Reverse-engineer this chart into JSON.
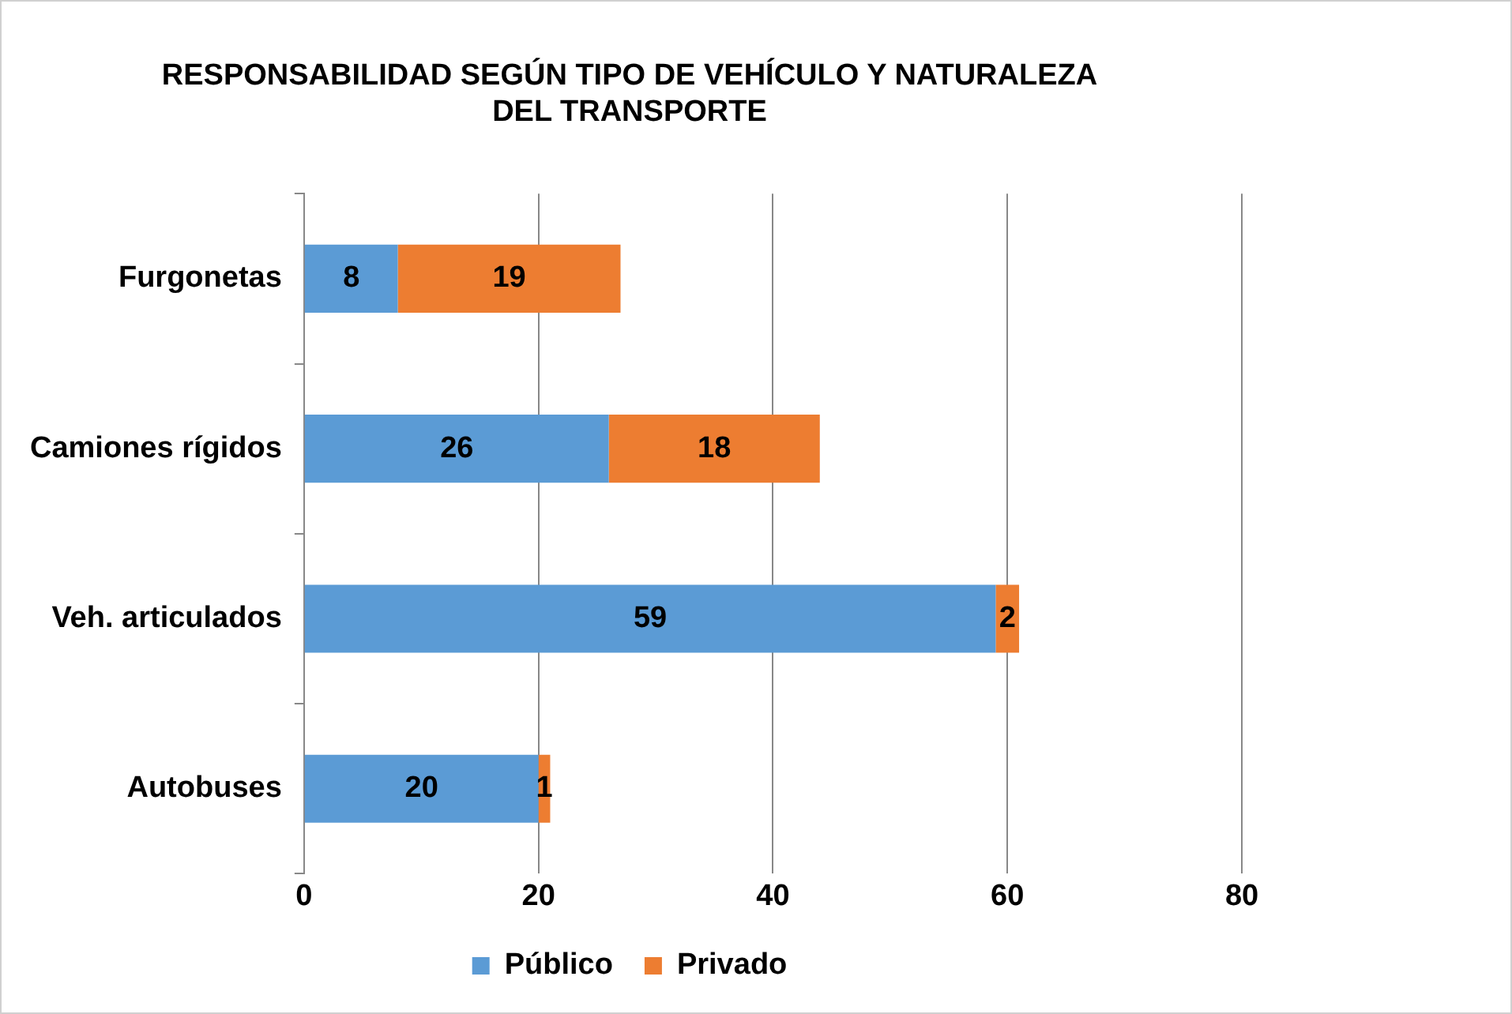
{
  "chart_data": {
    "type": "bar",
    "orientation": "horizontal",
    "stacked": true,
    "title": "RESPONSABILIDAD SEGÚN TIPO DE VEHÍCULO Y NATURALEZA\nDEL TRANSPORTE",
    "categories": [
      "Furgonetas",
      "Camiones rígidos",
      "Veh. articulados",
      "Autobuses"
    ],
    "series": [
      {
        "name": "Público",
        "color": "#5b9bd5",
        "values": [
          8,
          26,
          59,
          20
        ]
      },
      {
        "name": "Privado",
        "color": "#ed7d31",
        "values": [
          19,
          18,
          2,
          1
        ]
      }
    ],
    "xlim": [
      0,
      80
    ],
    "xticks": [
      0,
      20,
      40,
      60,
      80
    ],
    "grid": "x",
    "legend": "bottom",
    "data_labels": true
  }
}
